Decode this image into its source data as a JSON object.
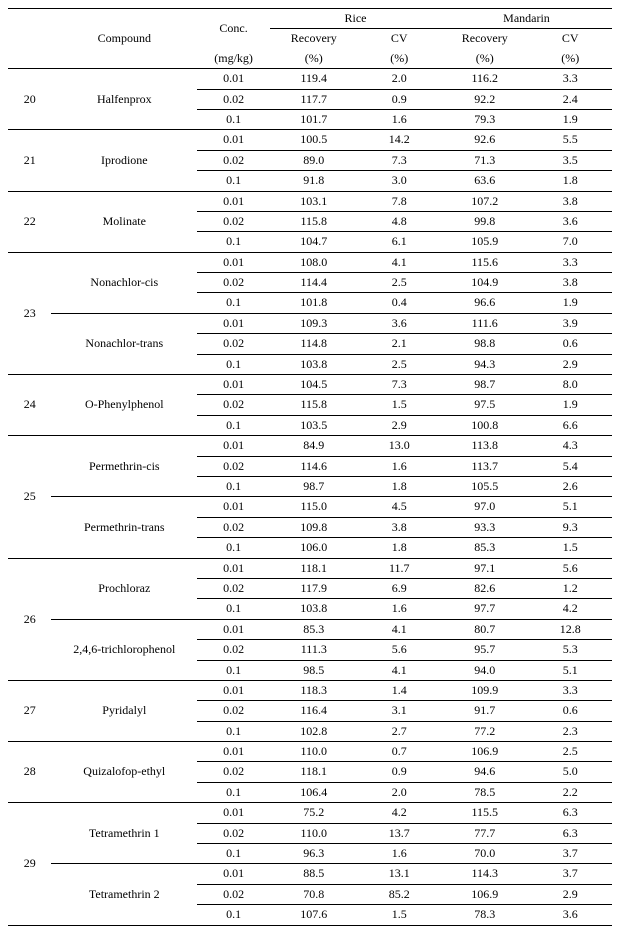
{
  "headers": {
    "compound": "Compound",
    "conc": "Conc.",
    "conc_unit": "(mg/kg)",
    "rice": "Rice",
    "mandarin": "Mandarin",
    "recovery": "Recovery",
    "recovery_unit": "(%)",
    "cv": "CV",
    "cv_unit": "(%)"
  },
  "groups": [
    {
      "idx": "20",
      "compounds": [
        {
          "name": "Halfenprox",
          "rows": [
            {
              "conc": "0.01",
              "rr": "119.4",
              "rc": "2.0",
              "mr": "116.2",
              "mc": "3.3"
            },
            {
              "conc": "0.02",
              "rr": "117.7",
              "rc": "0.9",
              "mr": "92.2",
              "mc": "2.4"
            },
            {
              "conc": "0.1",
              "rr": "101.7",
              "rc": "1.6",
              "mr": "79.3",
              "mc": "1.9"
            }
          ]
        }
      ]
    },
    {
      "idx": "21",
      "compounds": [
        {
          "name": "Iprodione",
          "rows": [
            {
              "conc": "0.01",
              "rr": "100.5",
              "rc": "14.2",
              "mr": "92.6",
              "mc": "5.5"
            },
            {
              "conc": "0.02",
              "rr": "89.0",
              "rc": "7.3",
              "mr": "71.3",
              "mc": "3.5"
            },
            {
              "conc": "0.1",
              "rr": "91.8",
              "rc": "3.0",
              "mr": "63.6",
              "mc": "1.8"
            }
          ]
        }
      ]
    },
    {
      "idx": "22",
      "compounds": [
        {
          "name": "Molinate",
          "rows": [
            {
              "conc": "0.01",
              "rr": "103.1",
              "rc": "7.8",
              "mr": "107.2",
              "mc": "3.8"
            },
            {
              "conc": "0.02",
              "rr": "115.8",
              "rc": "4.8",
              "mr": "99.8",
              "mc": "3.6"
            },
            {
              "conc": "0.1",
              "rr": "104.7",
              "rc": "6.1",
              "mr": "105.9",
              "mc": "7.0"
            }
          ]
        }
      ]
    },
    {
      "idx": "23",
      "compounds": [
        {
          "name": "Nonachlor-cis",
          "rows": [
            {
              "conc": "0.01",
              "rr": "108.0",
              "rc": "4.1",
              "mr": "115.6",
              "mc": "3.3"
            },
            {
              "conc": "0.02",
              "rr": "114.4",
              "rc": "2.5",
              "mr": "104.9",
              "mc": "3.8"
            },
            {
              "conc": "0.1",
              "rr": "101.8",
              "rc": "0.4",
              "mr": "96.6",
              "mc": "1.9"
            }
          ]
        },
        {
          "name": "Nonachlor-trans",
          "rows": [
            {
              "conc": "0.01",
              "rr": "109.3",
              "rc": "3.6",
              "mr": "111.6",
              "mc": "3.9"
            },
            {
              "conc": "0.02",
              "rr": "114.8",
              "rc": "2.1",
              "mr": "98.8",
              "mc": "0.6"
            },
            {
              "conc": "0.1",
              "rr": "103.8",
              "rc": "2.5",
              "mr": "94.3",
              "mc": "2.9"
            }
          ]
        }
      ]
    },
    {
      "idx": "24",
      "compounds": [
        {
          "name": "O-Phenylphenol",
          "rows": [
            {
              "conc": "0.01",
              "rr": "104.5",
              "rc": "7.3",
              "mr": "98.7",
              "mc": "8.0"
            },
            {
              "conc": "0.02",
              "rr": "115.8",
              "rc": "1.5",
              "mr": "97.5",
              "mc": "1.9"
            },
            {
              "conc": "0.1",
              "rr": "103.5",
              "rc": "2.9",
              "mr": "100.8",
              "mc": "6.6"
            }
          ]
        }
      ]
    },
    {
      "idx": "25",
      "compounds": [
        {
          "name": "Permethrin-cis",
          "rows": [
            {
              "conc": "0.01",
              "rr": "84.9",
              "rc": "13.0",
              "mr": "113.8",
              "mc": "4.3"
            },
            {
              "conc": "0.02",
              "rr": "114.6",
              "rc": "1.6",
              "mr": "113.7",
              "mc": "5.4"
            },
            {
              "conc": "0.1",
              "rr": "98.7",
              "rc": "1.8",
              "mr": "105.5",
              "mc": "2.6"
            }
          ]
        },
        {
          "name": "Permethrin-trans",
          "rows": [
            {
              "conc": "0.01",
              "rr": "115.0",
              "rc": "4.5",
              "mr": "97.0",
              "mc": "5.1"
            },
            {
              "conc": "0.02",
              "rr": "109.8",
              "rc": "3.8",
              "mr": "93.3",
              "mc": "9.3"
            },
            {
              "conc": "0.1",
              "rr": "106.0",
              "rc": "1.8",
              "mr": "85.3",
              "mc": "1.5"
            }
          ]
        }
      ]
    },
    {
      "idx": "26",
      "compounds": [
        {
          "name": "Prochloraz",
          "rows": [
            {
              "conc": "0.01",
              "rr": "118.1",
              "rc": "11.7",
              "mr": "97.1",
              "mc": "5.6"
            },
            {
              "conc": "0.02",
              "rr": "117.9",
              "rc": "6.9",
              "mr": "82.6",
              "mc": "1.2"
            },
            {
              "conc": "0.1",
              "rr": "103.8",
              "rc": "1.6",
              "mr": "97.7",
              "mc": "4.2"
            }
          ]
        },
        {
          "name": "2,4,6-trichlorophenol",
          "rows": [
            {
              "conc": "0.01",
              "rr": "85.3",
              "rc": "4.1",
              "mr": "80.7",
              "mc": "12.8"
            },
            {
              "conc": "0.02",
              "rr": "111.3",
              "rc": "5.6",
              "mr": "95.7",
              "mc": "5.3"
            },
            {
              "conc": "0.1",
              "rr": "98.5",
              "rc": "4.1",
              "mr": "94.0",
              "mc": "5.1"
            }
          ]
        }
      ]
    },
    {
      "idx": "27",
      "compounds": [
        {
          "name": "Pyridalyl",
          "rows": [
            {
              "conc": "0.01",
              "rr": "118.3",
              "rc": "1.4",
              "mr": "109.9",
              "mc": "3.3"
            },
            {
              "conc": "0.02",
              "rr": "116.4",
              "rc": "3.1",
              "mr": "91.7",
              "mc": "0.6"
            },
            {
              "conc": "0.1",
              "rr": "102.8",
              "rc": "2.7",
              "mr": "77.2",
              "mc": "2.3"
            }
          ]
        }
      ]
    },
    {
      "idx": "28",
      "compounds": [
        {
          "name": "Quizalofop-ethyl",
          "rows": [
            {
              "conc": "0.01",
              "rr": "110.0",
              "rc": "0.7",
              "mr": "106.9",
              "mc": "2.5"
            },
            {
              "conc": "0.02",
              "rr": "118.1",
              "rc": "0.9",
              "mr": "94.6",
              "mc": "5.0"
            },
            {
              "conc": "0.1",
              "rr": "106.4",
              "rc": "2.0",
              "mr": "78.5",
              "mc": "2.2"
            }
          ]
        }
      ]
    },
    {
      "idx": "29",
      "compounds": [
        {
          "name": "Tetramethrin 1",
          "rows": [
            {
              "conc": "0.01",
              "rr": "75.2",
              "rc": "4.2",
              "mr": "115.5",
              "mc": "6.3"
            },
            {
              "conc": "0.02",
              "rr": "110.0",
              "rc": "13.7",
              "mr": "77.7",
              "mc": "6.3"
            },
            {
              "conc": "0.1",
              "rr": "96.3",
              "rc": "1.6",
              "mr": "70.0",
              "mc": "3.7"
            }
          ]
        },
        {
          "name": "Tetramethrin 2",
          "rows": [
            {
              "conc": "0.01",
              "rr": "88.5",
              "rc": "13.1",
              "mr": "114.3",
              "mc": "3.7"
            },
            {
              "conc": "0.02",
              "rr": "70.8",
              "rc": "85.2",
              "mr": "106.9",
              "mc": "2.9"
            },
            {
              "conc": "0.1",
              "rr": "107.6",
              "rc": "1.5",
              "mr": "78.3",
              "mc": "3.6"
            }
          ]
        }
      ]
    }
  ]
}
